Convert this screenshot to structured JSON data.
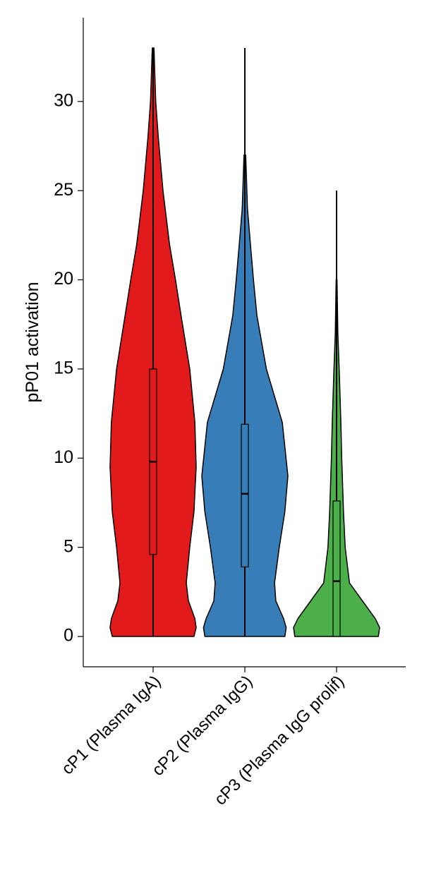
{
  "chart_data": {
    "type": "violin",
    "y_label": "pP01 activation",
    "categories": [
      "cP1 (Plasma IgA)",
      "cP2 (Plasma IgG)",
      "cP3 (Plasma IgG prolif)"
    ],
    "ylim": [
      -1.7,
      34.7
    ],
    "yticks": [
      0,
      5,
      10,
      15,
      20,
      25,
      30
    ],
    "series": [
      {
        "color": "#e31a1c",
        "violin_y": [
          0,
          0.5,
          1,
          2,
          3,
          5,
          7,
          9.5,
          12,
          15,
          18,
          20,
          22,
          25,
          28,
          30,
          33
        ],
        "violin_width": [
          0.95,
          1.0,
          0.97,
          0.82,
          0.77,
          0.85,
          0.95,
          1.0,
          0.97,
          0.85,
          0.65,
          0.52,
          0.38,
          0.23,
          0.12,
          0.06,
          0.02
        ],
        "whisker_low": 0,
        "q1": 4.6,
        "median": 9.8,
        "q3": 15,
        "whisker_high": 33
      },
      {
        "color": "#377eb8",
        "violin_y": [
          0,
          0.5,
          1,
          2,
          3,
          5,
          7,
          9,
          12,
          15,
          18,
          20,
          22,
          24,
          27
        ],
        "violin_width": [
          0.93,
          0.96,
          0.9,
          0.72,
          0.69,
          0.8,
          0.93,
          1.0,
          0.87,
          0.5,
          0.28,
          0.2,
          0.13,
          0.06,
          0.02
        ],
        "whisker_low": 0,
        "q1": 3.9,
        "median": 8.0,
        "q3": 11.9,
        "whisker_high": 33
      },
      {
        "color": "#4daf4a",
        "violin_y": [
          0,
          0.5,
          1,
          2,
          3,
          5,
          7,
          10,
          12,
          15,
          17,
          20
        ],
        "violin_width": [
          0.97,
          1.0,
          0.9,
          0.6,
          0.3,
          0.2,
          0.16,
          0.12,
          0.1,
          0.06,
          0.03,
          0.01
        ],
        "whisker_low": 0,
        "q1": 0,
        "median": 3.1,
        "q3": 7.6,
        "whisker_high": 25
      }
    ]
  }
}
